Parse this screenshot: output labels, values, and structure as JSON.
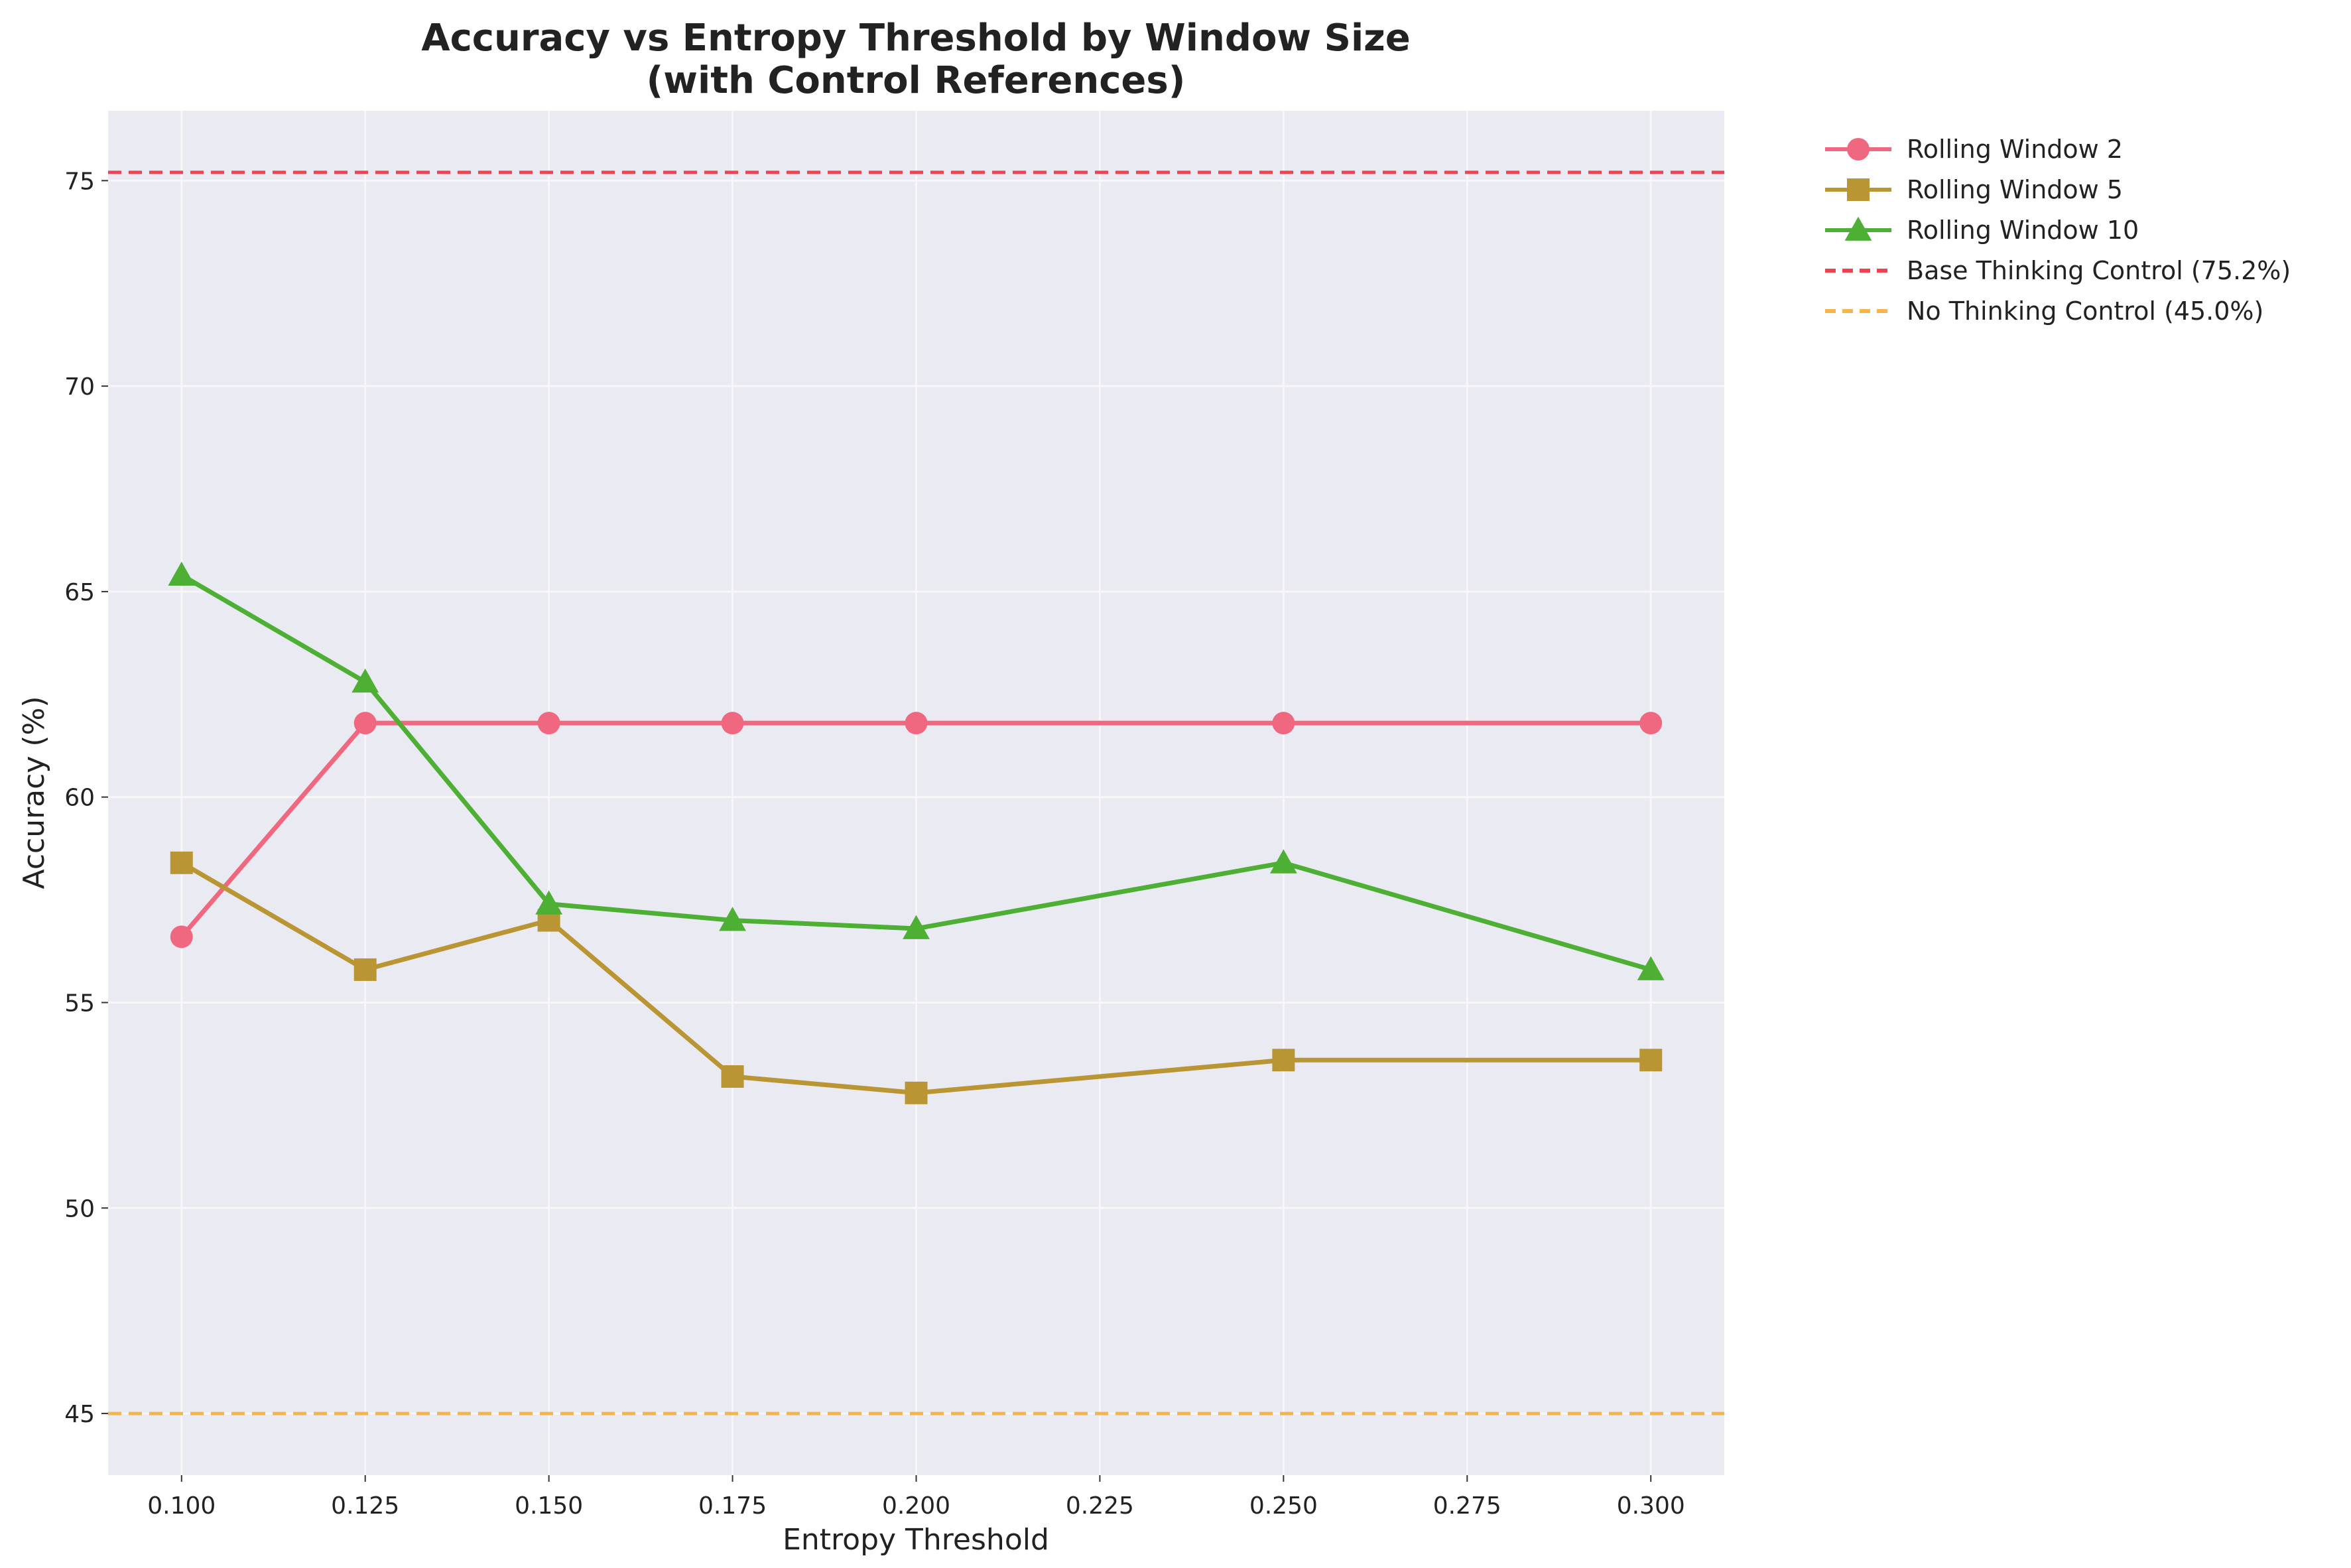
{
  "chart_data": {
    "type": "line",
    "title_lines": [
      "Accuracy vs Entropy Threshold by Window Size",
      "(with Control References)"
    ],
    "xlabel": "Entropy Threshold",
    "ylabel": "Accuracy (%)",
    "xlim": [
      0.09,
      0.31
    ],
    "ylim": [
      43.5,
      76.7
    ],
    "xticks": [
      0.1,
      0.125,
      0.15,
      0.175,
      0.2,
      0.225,
      0.25,
      0.275,
      0.3
    ],
    "xtick_labels": [
      "0.100",
      "0.125",
      "0.150",
      "0.175",
      "0.200",
      "0.225",
      "0.250",
      "0.275",
      "0.300"
    ],
    "yticks": [
      45,
      50,
      55,
      60,
      65,
      70,
      75
    ],
    "ytick_labels": [
      "45",
      "50",
      "55",
      "60",
      "65",
      "70",
      "75"
    ],
    "grid": true,
    "legend_position": "outside-right-top",
    "x": [
      0.1,
      0.125,
      0.15,
      0.175,
      0.2,
      0.25,
      0.3
    ],
    "series": [
      {
        "name": "Rolling Window 2",
        "marker": "circle",
        "color": "#F0687F",
        "values": [
          56.6,
          61.8,
          61.8,
          61.8,
          61.8,
          61.8,
          61.8
        ]
      },
      {
        "name": "Rolling Window 5",
        "marker": "square",
        "color": "#B99533",
        "values": [
          58.4,
          55.8,
          57.0,
          53.2,
          52.8,
          53.6,
          53.6
        ]
      },
      {
        "name": "Rolling Window 10",
        "marker": "triangle",
        "color": "#4DAF34",
        "values": [
          65.4,
          62.8,
          57.4,
          57.0,
          56.8,
          58.4,
          55.8
        ]
      }
    ],
    "reference_lines": [
      {
        "name": "Base Thinking Control (75.2%)",
        "value": 75.2,
        "color": "#F04250",
        "style": "dashed"
      },
      {
        "name": "No Thinking Control (45.0%)",
        "value": 45.0,
        "color": "#F5B54A",
        "style": "dashed"
      }
    ],
    "colors": {
      "plot_background": "#EAEAF2",
      "grid": "#F7F7FA"
    }
  }
}
